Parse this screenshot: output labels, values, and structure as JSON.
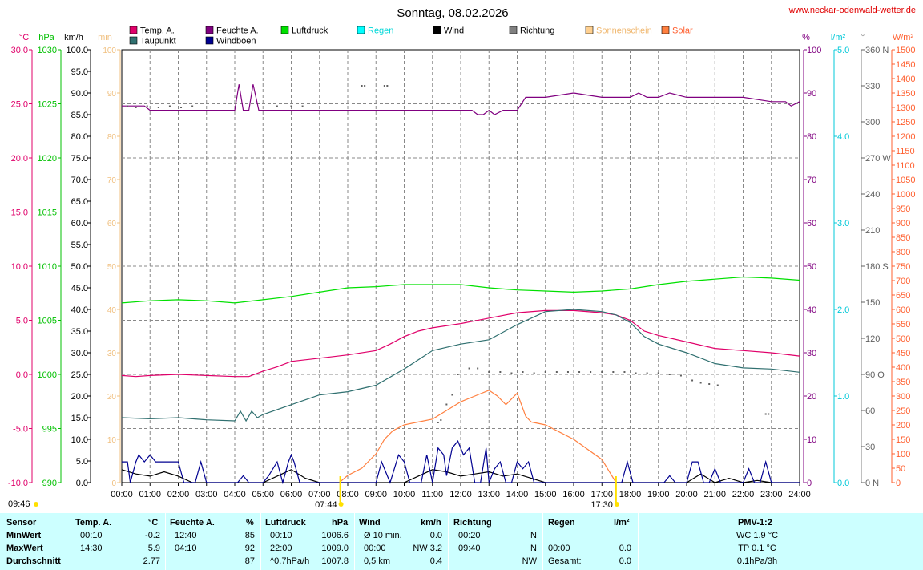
{
  "header": {
    "title": "Sonntag, 08.02.2026",
    "site": "www.neckar-odenwald-wetter.de"
  },
  "legend": [
    {
      "label": "Temp. A.",
      "color": "#e0006a"
    },
    {
      "label": "Feuchte A.",
      "color": "#800080"
    },
    {
      "label": "Luftdruck",
      "color": "#00e000"
    },
    {
      "label": "Regen",
      "color": "#00ffff"
    },
    {
      "label": "Wind",
      "color": "#000000"
    },
    {
      "label": "Richtung",
      "color": "#808080"
    },
    {
      "label": "Sonnenschein",
      "color": "#ffd090"
    },
    {
      "label": "Solar",
      "color": "#ff8040"
    },
    {
      "label": "Taupunkt",
      "color": "#307070"
    },
    {
      "label": "Windböen",
      "color": "#000090"
    }
  ],
  "unit_labels": {
    "temp": "°C",
    "press": "hPa",
    "wind": "km/h",
    "sun": "min",
    "hum": "%",
    "rain": "l/m²",
    "dir": "°",
    "solar": "W/m²"
  },
  "sun": {
    "rise": "07:44",
    "set": "17:30",
    "duration": "09:46"
  },
  "chart_data": {
    "type": "line",
    "title": "Sonntag, 08.02.2026",
    "x_ticks": [
      "00:00",
      "01:00",
      "02:00",
      "03:00",
      "04:00",
      "05:00",
      "06:00",
      "07:00",
      "08:00",
      "09:00",
      "10:00",
      "11:00",
      "12:00",
      "13:00",
      "14:00",
      "15:00",
      "16:00",
      "17:00",
      "18:00",
      "19:00",
      "20:00",
      "21:00",
      "22:00",
      "23:00",
      "24:00"
    ],
    "axes": {
      "temp": {
        "min": -10,
        "max": 30,
        "ticks": [
          "30.0",
          "25.0",
          "20.0",
          "15.0",
          "10.0",
          "5.0",
          "0.0",
          "-5.0",
          "-10.0"
        ]
      },
      "press": {
        "min": 990,
        "max": 1030,
        "ticks": [
          "1030",
          "1025",
          "1020",
          "1015",
          "1010",
          "1005",
          "1000",
          "995",
          "990"
        ]
      },
      "wind": {
        "min": 0,
        "max": 100,
        "ticks": [
          "100.0",
          "95.0",
          "90.0",
          "85.0",
          "80.0",
          "75.0",
          "70.0",
          "65.0",
          "60.0",
          "55.0",
          "50.0",
          "45.0",
          "40.0",
          "35.0",
          "30.0",
          "25.0",
          "20.0",
          "15.0",
          "10.0",
          "5.0",
          "0.0"
        ]
      },
      "sun": {
        "min": 0,
        "max": 100,
        "ticks": [
          "100",
          "90",
          "80",
          "70",
          "60",
          "50",
          "40",
          "30",
          "20",
          "10",
          "0"
        ]
      },
      "hum": {
        "min": 0,
        "max": 100,
        "ticks": [
          "100",
          "90",
          "80",
          "70",
          "60",
          "50",
          "40",
          "30",
          "20",
          "10",
          "0"
        ]
      },
      "rain": {
        "min": 0,
        "max": 5,
        "ticks": [
          "5.0",
          "4.0",
          "3.0",
          "2.0",
          "1.0",
          "0.0"
        ]
      },
      "dir": {
        "min": 0,
        "max": 360,
        "ticks": [
          "360 N",
          "330",
          "300",
          "270 W",
          "240",
          "210",
          "180 S",
          "150",
          "120",
          "90 O",
          "60",
          "30",
          "0 N"
        ]
      },
      "solar": {
        "min": 0,
        "max": 1500,
        "ticks": [
          "1500",
          "1450",
          "1400",
          "1350",
          "1300",
          "1250",
          "1200",
          "1150",
          "1100",
          "1050",
          "1000",
          "950",
          "900",
          "850",
          "800",
          "750",
          "700",
          "650",
          "600",
          "550",
          "500",
          "450",
          "400",
          "350",
          "300",
          "250",
          "200",
          "150",
          "100",
          "50",
          "0"
        ]
      }
    },
    "series": [
      {
        "name": "Temp. A.",
        "axis": "temp",
        "x": [
          0,
          0.5,
          1,
          2,
          3,
          4,
          4.5,
          5,
          5.5,
          6,
          7,
          8,
          9,
          9.5,
          10,
          10.5,
          11,
          12,
          13,
          14,
          15,
          16,
          17,
          17.5,
          18,
          18.5,
          19,
          20,
          21,
          22,
          23,
          24
        ],
        "values": [
          -0.1,
          -0.2,
          -0.1,
          0.0,
          -0.1,
          -0.2,
          -0.2,
          0.3,
          0.7,
          1.2,
          1.5,
          1.8,
          2.2,
          2.8,
          3.5,
          4.0,
          4.3,
          4.7,
          5.2,
          5.7,
          5.9,
          5.9,
          5.7,
          5.5,
          5.0,
          4.0,
          3.6,
          3.0,
          2.4,
          2.2,
          2.0,
          1.7
        ]
      },
      {
        "name": "Taupunkt",
        "axis": "temp",
        "x": [
          0,
          1,
          2,
          3,
          4,
          4.2,
          4.4,
          4.6,
          4.8,
          5,
          6,
          7,
          8,
          9,
          10,
          11,
          12,
          13,
          14,
          15,
          16,
          17,
          17.5,
          18,
          18.5,
          19,
          20,
          21,
          22,
          23,
          24
        ],
        "values": [
          -4.0,
          -4.1,
          -4.0,
          -4.2,
          -4.3,
          -3.4,
          -4.3,
          -3.4,
          -4.0,
          -3.7,
          -2.8,
          -1.9,
          -1.6,
          -1.0,
          0.5,
          2.2,
          2.8,
          3.2,
          4.6,
          5.8,
          6.0,
          5.8,
          5.5,
          4.8,
          3.5,
          2.8,
          2.0,
          1.0,
          0.6,
          0.5,
          0.2
        ]
      },
      {
        "name": "Feuchte A.",
        "axis": "hum",
        "x": [
          0,
          0.8,
          1,
          2,
          3,
          4,
          4.15,
          4.3,
          4.5,
          4.65,
          4.85,
          5,
          6,
          7,
          8,
          9,
          10,
          11,
          12,
          12.2,
          12.4,
          12.6,
          12.8,
          13,
          13.2,
          13.5,
          13.8,
          14,
          14.3,
          14.6,
          15,
          16,
          17,
          17.5,
          18,
          18.3,
          18.6,
          19,
          19.4,
          20,
          21,
          22,
          23,
          23.5,
          23.7,
          24
        ],
        "values": [
          87,
          87,
          86,
          86,
          86,
          86,
          92,
          86,
          86,
          92,
          86,
          86,
          86,
          86,
          86,
          86,
          86,
          86,
          86,
          86,
          86,
          85,
          85,
          86,
          85,
          86,
          86,
          86,
          89,
          89,
          89,
          90,
          89,
          89,
          89,
          90,
          89,
          89,
          90,
          89,
          89,
          89,
          88,
          88,
          87,
          88
        ]
      },
      {
        "name": "Luftdruck",
        "axis": "press",
        "x": [
          0,
          1,
          2,
          3,
          4,
          5,
          6,
          7,
          8,
          9,
          9.5,
          10,
          11,
          12,
          13,
          14,
          15,
          16,
          17,
          18,
          19,
          20,
          21,
          22,
          23,
          24
        ],
        "values": [
          1006.6,
          1006.8,
          1006.9,
          1006.8,
          1006.6,
          1006.9,
          1007.2,
          1007.6,
          1008.0,
          1008.1,
          1008.2,
          1008.3,
          1008.3,
          1008.3,
          1008.0,
          1007.8,
          1007.7,
          1007.6,
          1007.7,
          1007.9,
          1008.3,
          1008.6,
          1008.8,
          1009.0,
          1008.9,
          1008.7
        ]
      },
      {
        "name": "Windböen",
        "axis": "wind",
        "x": [
          0,
          0.2,
          0.3,
          0.5,
          0.6,
          0.8,
          1,
          1.2,
          1.4,
          1.6,
          2,
          2.2,
          2.4,
          2.6,
          2.8,
          3,
          4,
          4.1,
          4.3,
          4.5,
          5,
          5.2,
          5.5,
          5.7,
          5.9,
          6,
          6.1,
          6.3,
          6.5,
          6.7,
          6.8,
          7,
          8,
          8.5,
          9,
          9.2,
          9.5,
          9.8,
          10,
          10.2,
          10.4,
          10.6,
          10.8,
          11,
          11.2,
          11.4,
          11.5,
          11.7,
          11.9,
          12.1,
          12.3,
          12.5,
          12.7,
          12.9,
          13,
          13.2,
          13.4,
          13.6,
          13.8,
          14,
          14.2,
          14.4,
          14.6,
          15,
          16,
          17,
          17.5,
          17.7,
          17.9,
          18.1,
          18.5,
          19,
          19.2,
          19.4,
          19.6,
          20,
          20.2,
          20.4,
          20.6,
          20.8,
          21,
          21.2,
          21.4,
          21.6,
          22,
          22.2,
          22.4,
          22.6,
          22.8,
          23,
          23.2,
          23.4,
          23.6,
          23.8,
          24
        ],
        "values": [
          4.8,
          4.8,
          0,
          4.8,
          6.4,
          4.8,
          6.4,
          4.8,
          4.8,
          4.8,
          4.8,
          0,
          0,
          0,
          4.8,
          0,
          0,
          0,
          1.6,
          0,
          0,
          1.6,
          4.8,
          0,
          4.8,
          6.4,
          4.8,
          0,
          0,
          0,
          0,
          0,
          0,
          0,
          0,
          4.8,
          0,
          6.4,
          4.8,
          0,
          0,
          0,
          6.4,
          0,
          8.0,
          6.4,
          1.6,
          8.0,
          9.6,
          6.4,
          8.0,
          0,
          0,
          8.0,
          0,
          3.2,
          4.8,
          0,
          0,
          4.8,
          3.2,
          4.8,
          0,
          0,
          0,
          0,
          0,
          0,
          4.8,
          0,
          0,
          0,
          0,
          1.6,
          0,
          0,
          4.8,
          4.8,
          0,
          0,
          3.2,
          0,
          0,
          0,
          0,
          3.2,
          0,
          0,
          4.8,
          0,
          0,
          0,
          0,
          0,
          0
        ]
      },
      {
        "name": "Wind",
        "axis": "wind",
        "x": [
          0,
          0.5,
          1,
          1.5,
          2,
          2.5,
          3,
          4,
          4.5,
          5,
          5.5,
          6,
          6.5,
          7,
          8,
          9,
          10,
          10.5,
          11,
          11.5,
          12,
          12.5,
          13,
          13.5,
          14,
          14.5,
          15,
          16,
          17,
          18,
          19,
          20,
          20.5,
          21,
          21.5,
          22,
          22.5,
          23,
          24
        ],
        "values": [
          3.0,
          2.0,
          1.5,
          2.5,
          1.5,
          0,
          0,
          0,
          0,
          0,
          1.5,
          3.0,
          1.0,
          0,
          0,
          0,
          0,
          1.5,
          3.0,
          2.5,
          1.5,
          2.0,
          2.5,
          1.5,
          2.0,
          1.0,
          0,
          0,
          0,
          0,
          0,
          0,
          2.0,
          0,
          1.0,
          0,
          0.5,
          0,
          0
        ]
      },
      {
        "name": "Solar",
        "axis": "solar",
        "x": [
          7.7,
          8,
          8.5,
          9,
          9.3,
          9.6,
          10,
          10.5,
          11,
          11.5,
          12,
          12.5,
          13,
          13.3,
          13.6,
          14,
          14.3,
          14.5,
          15,
          16,
          17,
          17.5
        ],
        "values": [
          0,
          25,
          50,
          100,
          150,
          180,
          200,
          210,
          220,
          250,
          280,
          300,
          320,
          300,
          270,
          310,
          230,
          210,
          200,
          150,
          80,
          0
        ]
      },
      {
        "name": "Richtung",
        "axis": "dir",
        "x": [
          0.2,
          0.5,
          0.9,
          1.3,
          1.7,
          2.1,
          2.5,
          5.5,
          6,
          6.4,
          8.5,
          8.6,
          9.3,
          9.4,
          11.2,
          11.3,
          11.5,
          11.7,
          11.9,
          12.3,
          12.6,
          13,
          13.4,
          13.8,
          14.2,
          14.6,
          15,
          15.4,
          15.8,
          16.2,
          16.6,
          17,
          17.4,
          17.8,
          18.2,
          18.6,
          19,
          19.4,
          19.8,
          20.2,
          20.5,
          20.8,
          21.1,
          22.8,
          22.9
        ],
        "values": [
          313,
          312,
          313,
          312,
          313,
          312,
          313,
          313,
          313,
          313,
          330,
          330,
          330,
          330,
          50,
          52,
          65,
          73,
          90,
          95,
          95,
          92,
          92,
          91,
          92,
          91,
          92,
          92,
          92,
          92,
          92,
          92,
          92,
          92,
          91,
          91,
          91,
          90,
          89,
          85,
          83,
          82,
          81,
          57,
          57
        ]
      }
    ]
  },
  "stats": {
    "headers": {
      "sensor": "Sensor",
      "temp": "Temp. A.",
      "temp_u": "°C",
      "hum": "Feuchte A.",
      "hum_u": "%",
      "press": "Luftdruck",
      "press_u": "hPa",
      "wind": "Wind",
      "wind_u": "km/h",
      "dir": "Richtung",
      "rain": "Regen",
      "rain_u": "l/m²",
      "pmv": "PMV-1:2"
    },
    "rows": [
      {
        "label": "MinWert",
        "temp_time": "00:10",
        "temp_val": "-0.2",
        "hum_time": "12:40",
        "hum_val": "85",
        "press_time": "00:10",
        "press_val": "1006.6",
        "wind_label": "Ø 10 min.",
        "wind_val": "0.0",
        "dir_time": "00:20",
        "dir_val": "N",
        "rain_time": "",
        "rain_val": "",
        "pmv": "WC 1.9 °C"
      },
      {
        "label": "MaxWert",
        "temp_time": "14:30",
        "temp_val": "5.9",
        "hum_time": "04:10",
        "hum_val": "92",
        "press_time": "22:00",
        "press_val": "1009.0",
        "wind_label": "00:00",
        "wind_val": "NW 3.2",
        "dir_time": "09:40",
        "dir_val": "N",
        "rain_time": "00:00",
        "rain_val": "0.0",
        "pmv": "TP 0.1 °C"
      },
      {
        "label": "Durchschnitt",
        "temp_time": "",
        "temp_val": "2.77",
        "hum_time": "",
        "hum_val": "87",
        "press_time": "^0.7hPa/h",
        "press_val": "1007.8",
        "wind_label": "0,5 km",
        "wind_val": "0.4",
        "dir_time": "",
        "dir_val": "NW",
        "rain_time": "Gesamt:",
        "rain_val": "0.0",
        "pmv": "0.1hPa/3h"
      }
    ]
  }
}
